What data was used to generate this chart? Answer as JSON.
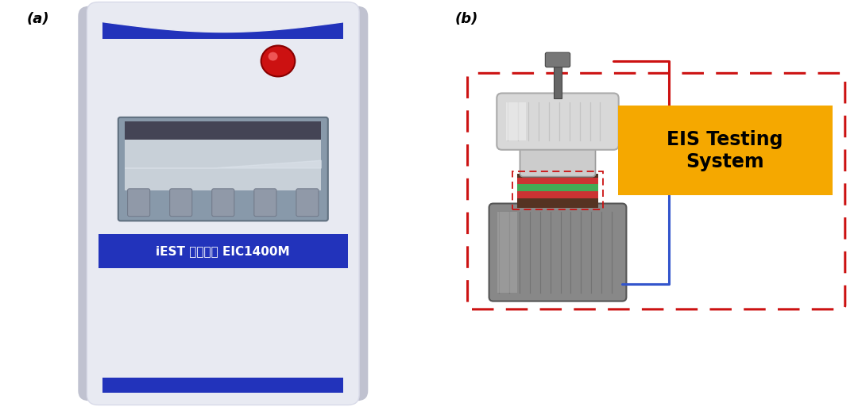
{
  "fig_width": 10.8,
  "fig_height": 5.13,
  "dpi": 100,
  "bg_color": "#ffffff",
  "label_a": "(a)",
  "label_b": "(b)",
  "label_fontsize": 13,
  "label_style": "italic",
  "panel_a": {
    "body_light": "#e8eaf2",
    "body_mid": "#d8dae8",
    "body_shadow": "#c0c2d0",
    "blue_accent": "#2233bb",
    "blue_stripe": "#2233bb",
    "window_frame": "#8899aa",
    "window_dark_top": "#444455",
    "window_inner": "#c8d0d8",
    "window_shine": "#dde4ec",
    "holder_color": "#9099a8",
    "button_color": "#cc1111",
    "button_shine": "#ee4444",
    "text_est": "iEST 元能科技 EIC1400M",
    "text_color": "#ffffff",
    "text_fontsize": 11
  },
  "panel_b": {
    "box_border_color": "#cc1111",
    "label_bg": "#f5a800",
    "label_text": "EIS Testing\nSystem",
    "label_text_color": "#000000",
    "label_fontsize": 17,
    "wire_red": "#cc1111",
    "wire_blue": "#3355cc",
    "top_disc_color": "#d8d8d8",
    "top_disc_edge": "#aaaaaa",
    "shaft_color": "#666666",
    "mid_body_color": "#cccccc",
    "mid_body_edge": "#999999",
    "base_color": "#888888",
    "base_edge": "#555555",
    "knurl_color": "#777777",
    "sample_red": "#aa3333",
    "sample_green": "#44aa55",
    "sample_dark": "#553322"
  }
}
